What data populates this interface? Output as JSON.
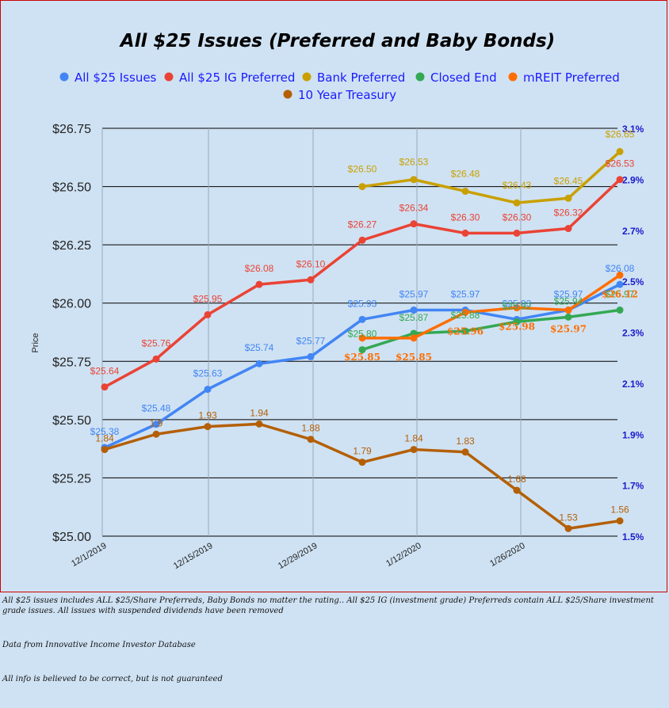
{
  "chart_data": {
    "type": "line",
    "title": "All $25 Issues (Preferred and Baby Bonds)",
    "ylabel": "Price",
    "ylim": [
      25.0,
      26.75
    ],
    "y2lim": [
      1.5,
      3.1
    ],
    "y_ticks": [
      "$25.00",
      "$25.25",
      "$25.50",
      "$25.75",
      "$26.00",
      "$26.25",
      "$26.50",
      "$26.75"
    ],
    "y2_ticks": [
      "1.5%",
      "1.7%",
      "1.9%",
      "2.1%",
      "2.3%",
      "2.5%",
      "2.7%",
      "2.9%",
      "3.1%"
    ],
    "x_ticks": [
      "12/1/2019",
      "12/15/2019",
      "12/29/2019",
      "1/12/2020",
      "1/26/2020"
    ],
    "grid": true,
    "legend_position": "top",
    "series": [
      {
        "name": "All $25 Issues",
        "color": "#4285f4",
        "axis": "left",
        "points": [
          [
            0,
            25.38,
            "$25.38"
          ],
          [
            1,
            25.48,
            "$25.48"
          ],
          [
            2,
            25.63,
            "$25.63"
          ],
          [
            3,
            25.74,
            "$25.74"
          ],
          [
            4,
            25.77,
            "$25.77"
          ],
          [
            5,
            25.93,
            "$25.93"
          ],
          [
            6,
            25.97,
            "$25.97"
          ],
          [
            7,
            25.97,
            "$25.97"
          ],
          [
            8,
            25.93,
            "$25.93"
          ],
          [
            9,
            25.97,
            "$25.97"
          ],
          [
            10,
            26.08,
            "$26.08"
          ]
        ]
      },
      {
        "name": "All $25 IG Preferred",
        "color": "#ea4335",
        "axis": "left",
        "points": [
          [
            0,
            25.64,
            "$25.64"
          ],
          [
            1,
            25.76,
            "$25.76"
          ],
          [
            2,
            25.95,
            "$25.95"
          ],
          [
            3,
            26.08,
            "$26.08"
          ],
          [
            4,
            26.1,
            "$26.10"
          ],
          [
            5,
            26.27,
            "$26.27"
          ],
          [
            6,
            26.34,
            "$26.34"
          ],
          [
            7,
            26.3,
            "$26.30"
          ],
          [
            8,
            26.3,
            "$26.30"
          ],
          [
            9,
            26.32,
            "$26.32"
          ],
          [
            10,
            26.53,
            "$26.53"
          ]
        ]
      },
      {
        "name": "Bank Preferred",
        "color": "#c9a000",
        "axis": "left",
        "points": [
          [
            5,
            26.5,
            "$26.50"
          ],
          [
            6,
            26.53,
            "$26.53"
          ],
          [
            7,
            26.48,
            "$26.48"
          ],
          [
            8,
            26.43,
            "$26.43"
          ],
          [
            9,
            26.45,
            "$26.45"
          ],
          [
            10,
            26.65,
            "$26.65"
          ]
        ]
      },
      {
        "name": "Closed End",
        "color": "#34a853",
        "axis": "left",
        "points": [
          [
            5,
            25.8,
            "$25.80"
          ],
          [
            6,
            25.87,
            "$25.87"
          ],
          [
            7,
            25.88,
            "$25.88"
          ],
          [
            8,
            25.92,
            "$25.92"
          ],
          [
            9,
            25.94,
            "$25.94"
          ],
          [
            10,
            25.97,
            "$25.97"
          ]
        ]
      },
      {
        "name": "mREIT Preferred",
        "color": "#ff6d00",
        "axis": "left",
        "label_style": "serif",
        "points": [
          [
            5,
            25.85,
            "$25.85"
          ],
          [
            6,
            25.85,
            "$25.85"
          ],
          [
            7,
            25.96,
            "$25.96"
          ],
          [
            8,
            25.98,
            "$25.98"
          ],
          [
            9,
            25.97,
            "$25.97"
          ],
          [
            10,
            26.12,
            "$26.12"
          ]
        ]
      },
      {
        "name": "10 Year Treasury",
        "color": "#b45f06",
        "axis": "right",
        "points": [
          [
            0,
            1.84,
            "1.84"
          ],
          [
            1,
            1.9,
            "1.9"
          ],
          [
            2,
            1.93,
            "1.93"
          ],
          [
            3,
            1.94,
            "1.94"
          ],
          [
            4,
            1.88,
            "1.88"
          ],
          [
            5,
            1.79,
            "1.79"
          ],
          [
            6,
            1.84,
            "1.84"
          ],
          [
            7,
            1.83,
            "1.83"
          ],
          [
            8,
            1.68,
            "1.68"
          ],
          [
            9,
            1.53,
            "1.53"
          ],
          [
            10,
            1.56,
            "1.56"
          ]
        ]
      }
    ]
  },
  "notes": [
    "All $25 issues includes ALL $25/Share Preferreds, Baby Bonds no matter the rating..  All $25 IG (investment grade) Preferreds contain ALL $25/Share investment grade issues.  All issues with suspended dividends have been removed",
    "Data from Innovative Income Investor Database",
    "All info is believed to be correct, but is not guaranteed"
  ]
}
